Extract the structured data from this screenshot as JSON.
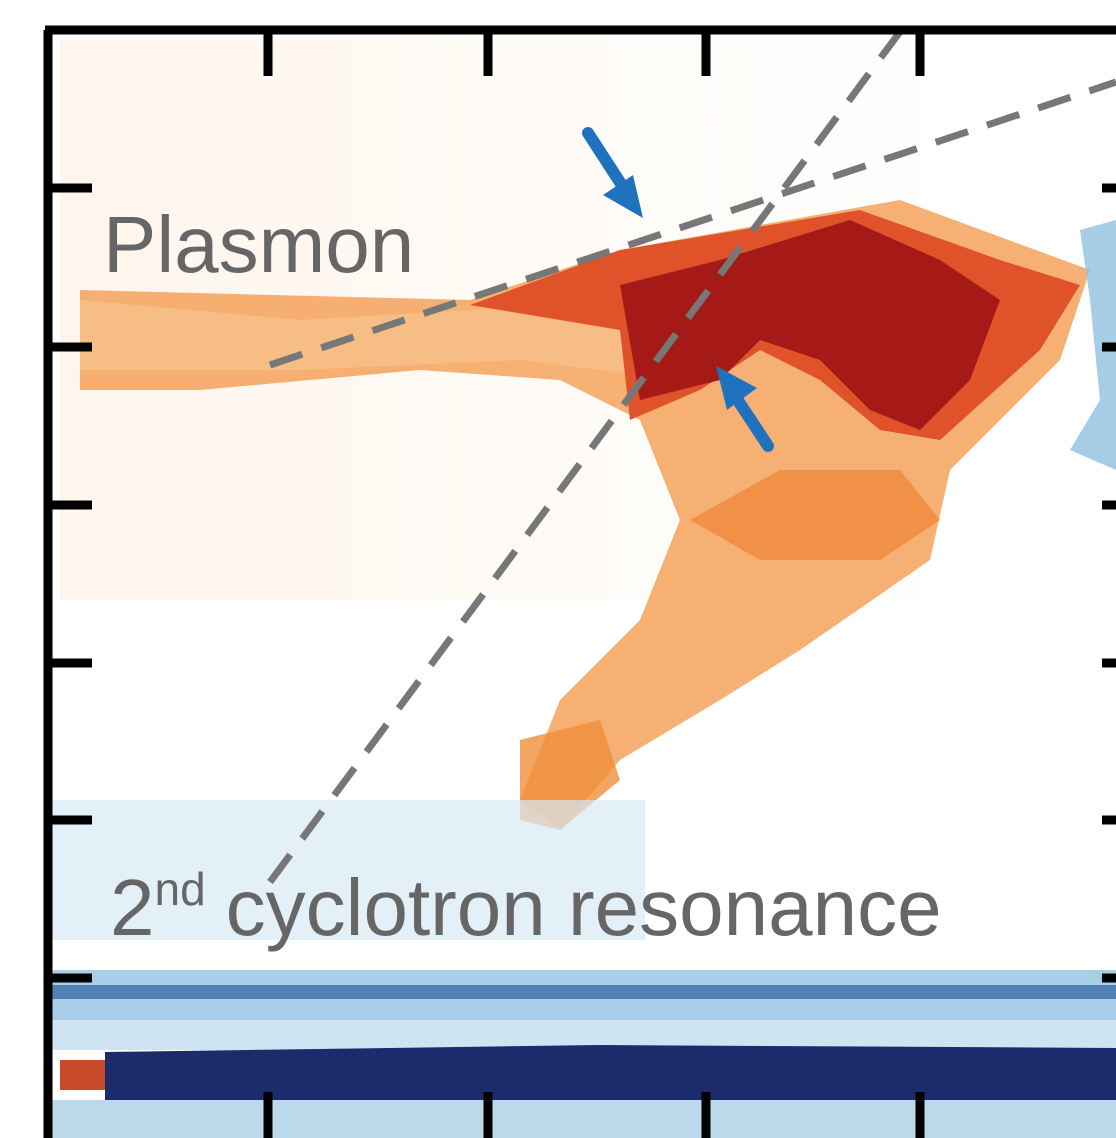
{
  "annotations": {
    "plasmon": "Plasmon",
    "cyclotron": {
      "order": "2",
      "suffix": "nd",
      "text": "cyclotron resonance"
    }
  }
}
